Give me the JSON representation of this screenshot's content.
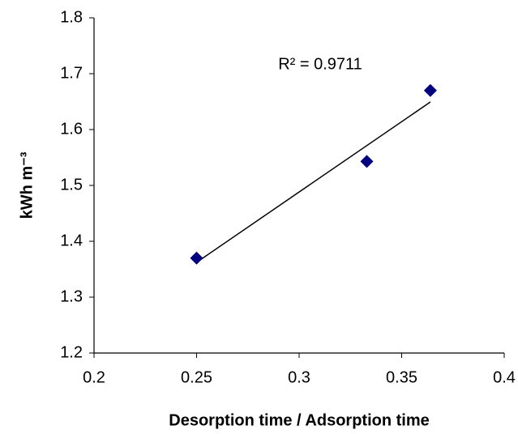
{
  "chart_data": {
    "type": "scatter",
    "xlabel": "Desorption time / Adsorption time",
    "ylabel": "kWh m⁻³",
    "annotation": "R² = 0.9711",
    "series": [
      {
        "x": [
          0.25,
          0.333,
          0.364
        ],
        "values": [
          1.37,
          1.543,
          1.67
        ],
        "color": "#000080"
      }
    ],
    "trendline": "linear",
    "xlim": [
      0.2,
      0.4
    ],
    "xticks": [
      0.2,
      0.25,
      0.3,
      0.35,
      0.4
    ],
    "ylim": [
      1.2,
      1.8
    ],
    "yticks": [
      1.2,
      1.3,
      1.4,
      1.5,
      1.6,
      1.7,
      1.8
    ],
    "grid": false
  }
}
